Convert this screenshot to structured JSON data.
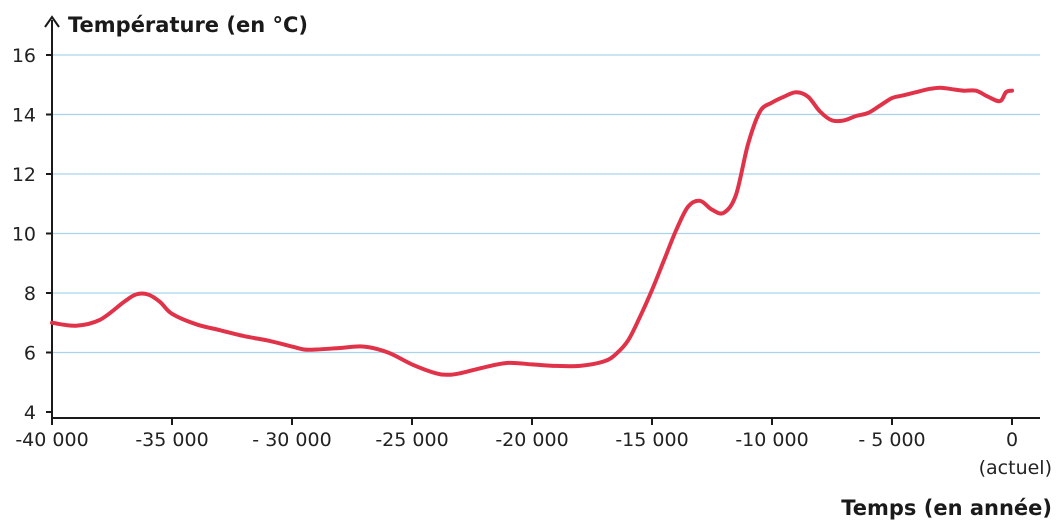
{
  "chart_data": {
    "type": "line",
    "ylabel": "Température (en °C)",
    "xlabel": "Temps (en année)",
    "x_note": "(actuel)",
    "xlim": [
      -40000,
      0
    ],
    "ylim": [
      4,
      16
    ],
    "x_ticks": [
      -40000,
      -35000,
      -30000,
      -25000,
      -20000,
      -15000,
      -10000,
      -5000,
      0
    ],
    "x_tick_labels": [
      "-40 000",
      "-35 000",
      "- 30 000",
      "-25 000",
      "-20 000",
      "-15 000",
      "-10 000",
      "- 5 000",
      "0"
    ],
    "y_ticks": [
      4,
      6,
      8,
      10,
      12,
      14,
      16
    ],
    "y_tick_labels": [
      "4",
      "6",
      "8",
      "10",
      "12",
      "14",
      "16"
    ],
    "grid": "horizontal",
    "series": [
      {
        "color": "#e0334a",
        "x": [
          -40000,
          -39000,
          -38000,
          -37000,
          -36500,
          -36000,
          -35500,
          -35000,
          -34000,
          -33000,
          -32000,
          -31000,
          -30000,
          -29500,
          -29000,
          -28000,
          -27000,
          -26000,
          -25000,
          -24000,
          -23500,
          -23000,
          -22000,
          -21000,
          -20000,
          -19000,
          -18000,
          -17000,
          -16500,
          -16000,
          -15500,
          -15000,
          -14500,
          -14000,
          -13500,
          -13000,
          -12500,
          -12000,
          -11500,
          -11000,
          -10500,
          -10000,
          -9500,
          -9000,
          -8500,
          -8000,
          -7500,
          -7000,
          -6500,
          -6000,
          -5500,
          -5000,
          -4500,
          -4000,
          -3500,
          -3000,
          -2500,
          -2000,
          -1500,
          -1000,
          -500,
          -250,
          0
        ],
        "y": [
          7.0,
          6.9,
          7.1,
          7.7,
          7.95,
          7.95,
          7.7,
          7.3,
          6.95,
          6.75,
          6.55,
          6.4,
          6.2,
          6.1,
          6.1,
          6.15,
          6.2,
          6.0,
          5.6,
          5.3,
          5.25,
          5.3,
          5.5,
          5.65,
          5.6,
          5.55,
          5.55,
          5.7,
          5.95,
          6.4,
          7.2,
          8.1,
          9.1,
          10.1,
          10.9,
          11.1,
          10.8,
          10.7,
          11.3,
          13.0,
          14.1,
          14.4,
          14.6,
          14.75,
          14.6,
          14.1,
          13.8,
          13.8,
          13.95,
          14.05,
          14.3,
          14.55,
          14.65,
          14.75,
          14.85,
          14.9,
          14.85,
          14.8,
          14.8,
          14.6,
          14.45,
          14.75,
          14.8
        ]
      }
    ]
  }
}
